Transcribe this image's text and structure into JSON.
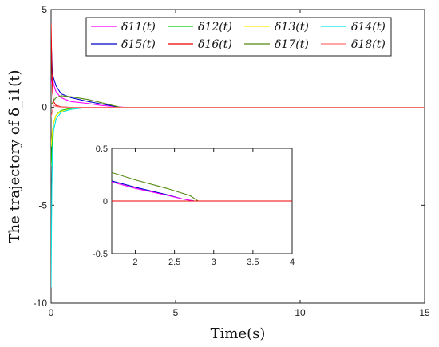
{
  "chart_data": [
    {
      "type": "line",
      "xlabel": "Time(s)",
      "ylabel": "The trajectory of δ_i1(t)",
      "xlim": [
        0,
        15
      ],
      "ylim": [
        -10,
        5
      ],
      "xticks": [
        0,
        5,
        10,
        15
      ],
      "yticks": [
        -10,
        -5,
        0,
        5
      ],
      "xtick_labels": [
        "0",
        "5",
        "10",
        "15"
      ],
      "ytick_labels": [
        "-10",
        "-5",
        "0",
        "5"
      ],
      "legend_position": "top",
      "series": [
        {
          "name": "δ11(t)",
          "color": "#ff00ff",
          "x": [
            0,
            0.05,
            0.1,
            0.2,
            0.4,
            0.8,
            1.5,
            2.0,
            3,
            15
          ],
          "y": [
            1.2,
            1.6,
            1.2,
            0.8,
            0.5,
            0.3,
            0.2,
            0.1,
            0,
            0
          ]
        },
        {
          "name": "δ12(t)",
          "color": "#00cc00",
          "x": [
            0,
            0.05,
            0.1,
            0.2,
            0.4,
            0.8,
            1.5,
            3,
            15
          ],
          "y": [
            -3.0,
            -1.5,
            -0.8,
            -0.4,
            -0.15,
            -0.05,
            0,
            0,
            0
          ]
        },
        {
          "name": "δ13(t)",
          "color": "#ffee00",
          "x": [
            0,
            0.05,
            0.1,
            0.2,
            0.4,
            0.8,
            1.2,
            3,
            15
          ],
          "y": [
            -2.0,
            -1.2,
            -0.8,
            -0.4,
            -0.2,
            -0.1,
            0,
            0,
            0
          ]
        },
        {
          "name": "δ14(t)",
          "color": "#00e5e5",
          "x": [
            0,
            0.03,
            0.06,
            0.1,
            0.2,
            0.4,
            0.8,
            1.5,
            3,
            15
          ],
          "y": [
            -9.2,
            -4.0,
            -2.0,
            -1.2,
            -0.6,
            -0.25,
            -0.1,
            0,
            0,
            0
          ]
        },
        {
          "name": "δ15(t)",
          "color": "#0000cc",
          "x": [
            0,
            0.05,
            0.1,
            0.2,
            0.4,
            0.8,
            1.5,
            2.0,
            2.8,
            15
          ],
          "y": [
            3.5,
            1.8,
            1.5,
            1.1,
            0.7,
            0.5,
            0.3,
            0.18,
            0,
            0
          ]
        },
        {
          "name": "δ16(t)",
          "color": "#ee0000",
          "x": [
            0,
            0.03,
            0.06,
            0.1,
            0.2,
            0.4,
            0.8,
            1.5,
            3,
            15
          ],
          "y": [
            4.3,
            2.0,
            0.8,
            0.3,
            0.1,
            0.03,
            0,
            0,
            0,
            0
          ]
        },
        {
          "name": "δ17(t)",
          "color": "#558811",
          "x": [
            0,
            0.05,
            0.1,
            0.2,
            0.4,
            0.8,
            1.5,
            2.0,
            2.8,
            15
          ],
          "y": [
            0.2,
            0.2,
            0.35,
            0.5,
            0.6,
            0.55,
            0.4,
            0.25,
            0,
            0
          ]
        },
        {
          "name": "δ18(t)",
          "color": "#ff7070",
          "x": [
            0,
            0.05,
            0.1,
            0.2,
            0.4,
            0.8,
            1.5,
            3,
            15
          ],
          "y": [
            -0.5,
            -0.2,
            0.1,
            0.05,
            0.02,
            0,
            0,
            0,
            0
          ]
        }
      ]
    },
    {
      "type": "line",
      "xlim": [
        1.7,
        4
      ],
      "ylim": [
        -0.5,
        0.5
      ],
      "xticks": [
        2,
        2.5,
        3,
        3.5,
        4
      ],
      "yticks": [
        -0.5,
        0,
        0.5
      ],
      "xtick_labels": [
        "2",
        "2.5",
        "3",
        "3.5",
        "4"
      ],
      "ytick_labels": [
        "-0.5",
        "0",
        "0.5"
      ],
      "series": [
        {
          "name": "δ17(t)",
          "color": "#558811",
          "x": [
            1.7,
            2.0,
            2.4,
            2.7,
            2.8,
            4.0
          ],
          "y": [
            0.27,
            0.2,
            0.12,
            0.05,
            0.0,
            0.0
          ]
        },
        {
          "name": "δ15(t)",
          "color": "#0000cc",
          "x": [
            1.7,
            2.0,
            2.4,
            2.6,
            2.75,
            4.0
          ],
          "y": [
            0.19,
            0.13,
            0.06,
            0.02,
            0.0,
            0.0
          ]
        },
        {
          "name": "δ11(t)",
          "color": "#ff00ff",
          "x": [
            1.7,
            2.0,
            2.4,
            2.6,
            2.75,
            4.0
          ],
          "y": [
            0.18,
            0.12,
            0.055,
            0.02,
            0.0,
            0.0
          ]
        },
        {
          "name": "δ14(t)",
          "color": "#00e5e5",
          "x": [
            1.7,
            2.5,
            3.0,
            4.0
          ],
          "y": [
            0,
            0,
            0,
            0
          ]
        },
        {
          "name": "δ16(t)",
          "color": "#ee0000",
          "x": [
            1.7,
            2.5,
            3.0,
            4.0
          ],
          "y": [
            0,
            0,
            0,
            0
          ]
        }
      ]
    }
  ]
}
